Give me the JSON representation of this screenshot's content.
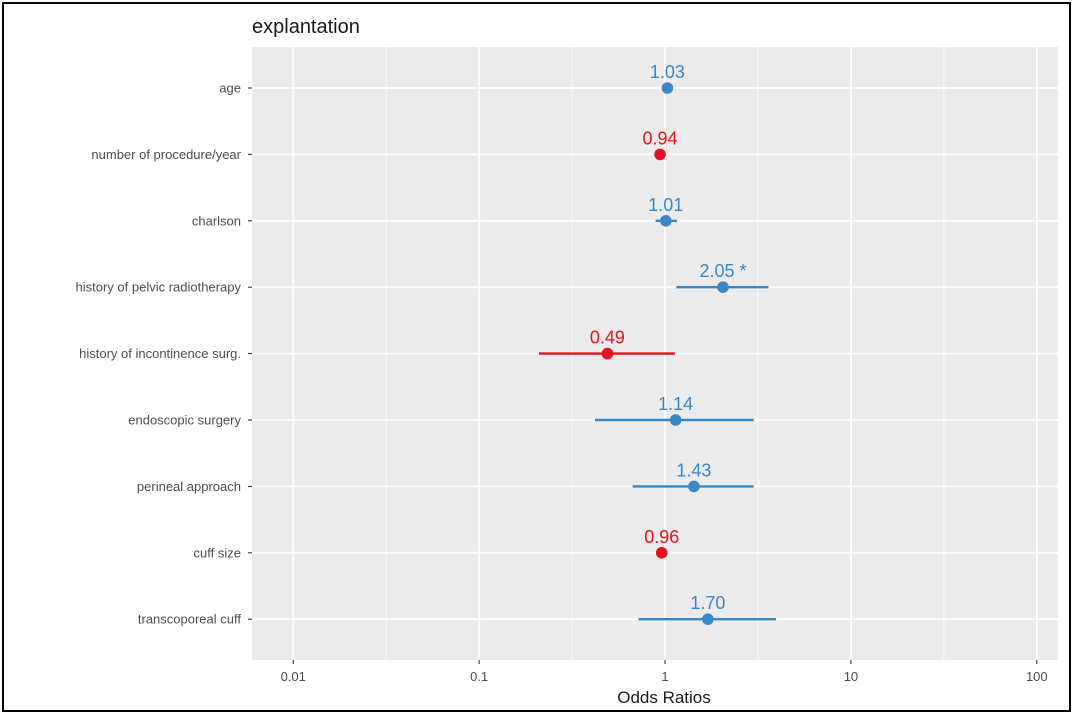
{
  "chart_data": {
    "type": "forest",
    "title": "explantation",
    "xlabel": "Odds Ratios",
    "ylabel": "",
    "x_scale": "log10",
    "xlim": [
      0.006,
      130
    ],
    "xticks": [
      0.01,
      0.1,
      1,
      10,
      100
    ],
    "xtick_labels": [
      "0.01",
      "0.1",
      "1",
      "10",
      "100"
    ],
    "reference_line": 1,
    "grid": true,
    "colors": {
      "positive": "#3a87c8",
      "negative": "#e8101e",
      "panel": "#ebebeb",
      "gridline": "#ffffff"
    },
    "rows": [
      {
        "term": "age",
        "estimate": 1.03,
        "ci_low": null,
        "ci_high": null,
        "label": "1.03",
        "direction": "positive"
      },
      {
        "term": "number of procedure/year",
        "estimate": 0.94,
        "ci_low": null,
        "ci_high": null,
        "label": "0.94",
        "direction": "negative"
      },
      {
        "term": "charlson",
        "estimate": 1.01,
        "ci_low": 0.89,
        "ci_high": 1.16,
        "label": "1.01",
        "direction": "positive"
      },
      {
        "term": "history of pelvic radiotherapy",
        "estimate": 2.05,
        "ci_low": 1.15,
        "ci_high": 3.6,
        "label": "2.05 *",
        "direction": "positive"
      },
      {
        "term": "history of incontinence surg.",
        "estimate": 0.49,
        "ci_low": 0.21,
        "ci_high": 1.13,
        "label": "0.49",
        "direction": "negative"
      },
      {
        "term": "endoscopic surgery",
        "estimate": 1.14,
        "ci_low": 0.42,
        "ci_high": 3.0,
        "label": "1.14",
        "direction": "positive"
      },
      {
        "term": "perineal approach",
        "estimate": 1.43,
        "ci_low": 0.67,
        "ci_high": 3.0,
        "label": "1.43",
        "direction": "positive"
      },
      {
        "term": "cuff size",
        "estimate": 0.96,
        "ci_low": null,
        "ci_high": null,
        "label": "0.96",
        "direction": "negative"
      },
      {
        "term": "transcoporeal cuff",
        "estimate": 1.7,
        "ci_low": 0.72,
        "ci_high": 3.95,
        "label": "1.70",
        "direction": "positive"
      }
    ]
  }
}
